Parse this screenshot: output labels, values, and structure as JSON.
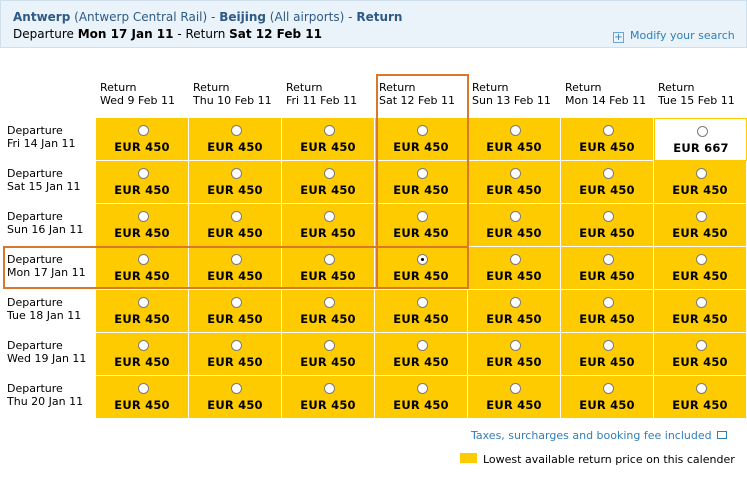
{
  "header": {
    "origin": "Antwerp",
    "origin_detail": "(Antwerp Central Rail)",
    "sep": "-",
    "destination": "Beijing",
    "destination_detail": "(All airports)",
    "trip_type": "Return",
    "departure_label": "Departure",
    "departure_date": "Mon 17 Jan 11",
    "return_label": "Return",
    "return_date": "Sat 12 Feb 11",
    "modify_label": "Modify your search",
    "modify_icon": "plus-icon"
  },
  "columns": [
    {
      "label": "Return",
      "date": "Wed 9 Feb 11"
    },
    {
      "label": "Return",
      "date": "Thu 10 Feb 11"
    },
    {
      "label": "Return",
      "date": "Fri 11 Feb 11"
    },
    {
      "label": "Return",
      "date": "Sat 12 Feb 11"
    },
    {
      "label": "Return",
      "date": "Sun 13 Feb 11"
    },
    {
      "label": "Return",
      "date": "Mon 14 Feb 11"
    },
    {
      "label": "Return",
      "date": "Tue 15 Feb 11"
    }
  ],
  "rows": [
    {
      "label": "Departure",
      "date": "Fri 14 Jan 11",
      "prices": [
        "EUR 450",
        "EUR 450",
        "EUR 450",
        "EUR 450",
        "EUR 450",
        "EUR 450",
        "EUR 667"
      ]
    },
    {
      "label": "Departure",
      "date": "Sat 15 Jan 11",
      "prices": [
        "EUR 450",
        "EUR 450",
        "EUR 450",
        "EUR 450",
        "EUR 450",
        "EUR 450",
        "EUR 450"
      ]
    },
    {
      "label": "Departure",
      "date": "Sun 16 Jan 11",
      "prices": [
        "EUR 450",
        "EUR 450",
        "EUR 450",
        "EUR 450",
        "EUR 450",
        "EUR 450",
        "EUR 450"
      ]
    },
    {
      "label": "Departure",
      "date": "Mon 17 Jan 11",
      "prices": [
        "EUR 450",
        "EUR 450",
        "EUR 450",
        "EUR 450",
        "EUR 450",
        "EUR 450",
        "EUR 450"
      ]
    },
    {
      "label": "Departure",
      "date": "Tue 18 Jan 11",
      "prices": [
        "EUR 450",
        "EUR 450",
        "EUR 450",
        "EUR 450",
        "EUR 450",
        "EUR 450",
        "EUR 450"
      ]
    },
    {
      "label": "Departure",
      "date": "Wed 19 Jan 11",
      "prices": [
        "EUR 450",
        "EUR 450",
        "EUR 450",
        "EUR 450",
        "EUR 450",
        "EUR 450",
        "EUR 450"
      ]
    },
    {
      "label": "Departure",
      "date": "Thu 20 Jan 11",
      "prices": [
        "EUR 450",
        "EUR 450",
        "EUR 450",
        "EUR 450",
        "EUR 450",
        "EUR 450",
        "EUR 450"
      ]
    }
  ],
  "selected": {
    "row": 3,
    "col": 3
  },
  "lowest_flags": [
    [
      true,
      true,
      true,
      true,
      true,
      true,
      false
    ],
    [
      true,
      true,
      true,
      true,
      true,
      true,
      true
    ],
    [
      true,
      true,
      true,
      true,
      true,
      true,
      true
    ],
    [
      true,
      true,
      true,
      true,
      true,
      true,
      true
    ],
    [
      true,
      true,
      true,
      true,
      true,
      true,
      true
    ],
    [
      true,
      true,
      true,
      true,
      true,
      true,
      true
    ],
    [
      true,
      true,
      true,
      true,
      true,
      true,
      true
    ]
  ],
  "footer": {
    "taxes_label": "Taxes, surcharges and booking fee included",
    "taxes_icon": "external-window-icon",
    "legend_label": "Lowest available return price on this calender"
  },
  "colors": {
    "lowest": "#fdcb00",
    "highlight": "#d9772e",
    "link": "#2f7fb8",
    "header_bg": "#eaf3fa"
  }
}
